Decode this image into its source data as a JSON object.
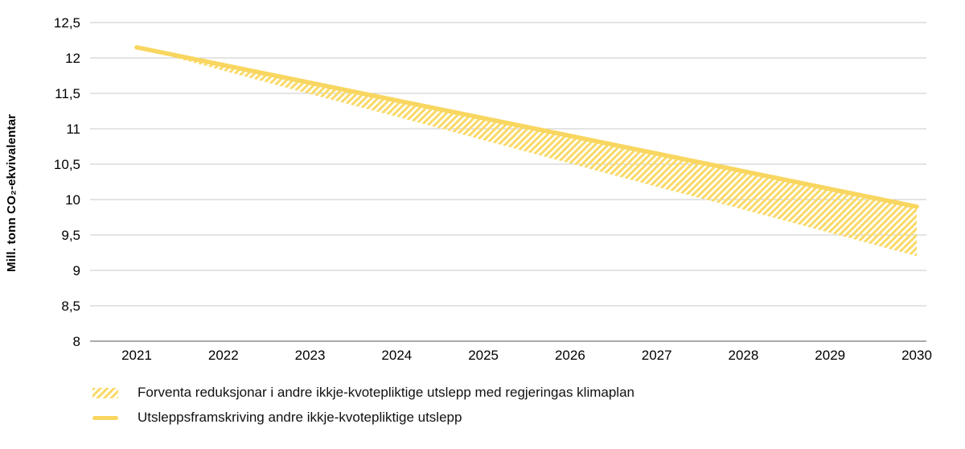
{
  "chart_data": {
    "type": "area",
    "title": "",
    "xlabel": "",
    "ylabel": "Mill. tonn CO₂-ekvivalentar",
    "categories": [
      "2021",
      "2022",
      "2023",
      "2024",
      "2025",
      "2026",
      "2027",
      "2028",
      "2029",
      "2030"
    ],
    "series": [
      {
        "name": "Utsleppsframskriving andre ikkje-kvotepliktige utslepp",
        "role": "upper-line",
        "values": [
          12.15,
          11.9,
          11.65,
          11.4,
          11.15,
          10.9,
          10.65,
          10.4,
          10.15,
          9.9
        ]
      },
      {
        "name": "Forventa reduksjonar i andre ikkje-kvotepliktige utslepp med regjeringas klimaplan",
        "role": "lower-bound-of-hatched-band",
        "values": [
          12.15,
          11.82,
          11.49,
          11.17,
          10.84,
          10.51,
          10.18,
          9.86,
          9.53,
          9.2
        ]
      }
    ],
    "ylim": [
      8,
      12.5
    ],
    "yticks": [
      {
        "v": 8,
        "label": "8"
      },
      {
        "v": 8.5,
        "label": "8,5"
      },
      {
        "v": 9,
        "label": "9"
      },
      {
        "v": 9.5,
        "label": "9,5"
      },
      {
        "v": 10,
        "label": "10"
      },
      {
        "v": 10.5,
        "label": "10,5"
      },
      {
        "v": 11,
        "label": "11"
      },
      {
        "v": 11.5,
        "label": "11,5"
      },
      {
        "v": 12,
        "label": "12"
      },
      {
        "v": 12.5,
        "label": "12,5"
      }
    ],
    "grid": "horizontal",
    "legend_position": "bottom-left",
    "legend": [
      {
        "swatch": "hatch",
        "label": "Forventa reduksjonar i andre ikkje-kvotepliktige utslepp med regjeringas klimaplan"
      },
      {
        "swatch": "line",
        "label": "Utsleppsframskriving andre ikkje-kvotepliktige utslepp"
      }
    ],
    "colors": {
      "line": "#F8D660",
      "hatch": "#F9DA6B",
      "grid": "#C9C9C9",
      "axis": "#8F8F8F",
      "text": "#000000"
    }
  }
}
